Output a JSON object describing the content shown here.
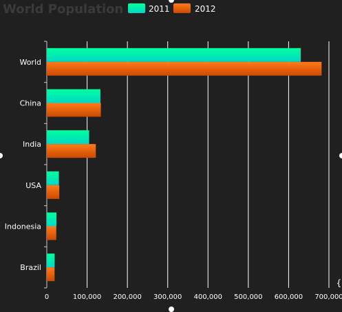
{
  "chart_data": {
    "type": "bar",
    "orientation": "horizontal",
    "title": "World Population",
    "categories": [
      "World",
      "China",
      "India",
      "USA",
      "Indonesia",
      "Brazil"
    ],
    "series": [
      {
        "name": "2011",
        "values": [
          630000,
          133000,
          105000,
          30000,
          24000,
          19500
        ],
        "color_top": "#00ff9c",
        "color_bottom": "#00d8c8"
      },
      {
        "name": "2012",
        "values": [
          681807,
          134141,
          121600,
          31000,
          23489,
          19325
        ],
        "color_top": "#ff7a1a",
        "color_bottom": "#cc4a00"
      }
    ],
    "xlim": [
      0,
      700000
    ],
    "xticks": [
      "0",
      "100,000",
      "200,000",
      "300,000",
      "400,000",
      "500,000",
      "600,000",
      "700,000"
    ],
    "grid": true,
    "legend": "top"
  },
  "colors": {
    "background": "#202020",
    "grid": "#ffffff",
    "text": "#ffffff",
    "title": "#3a3a3a"
  }
}
